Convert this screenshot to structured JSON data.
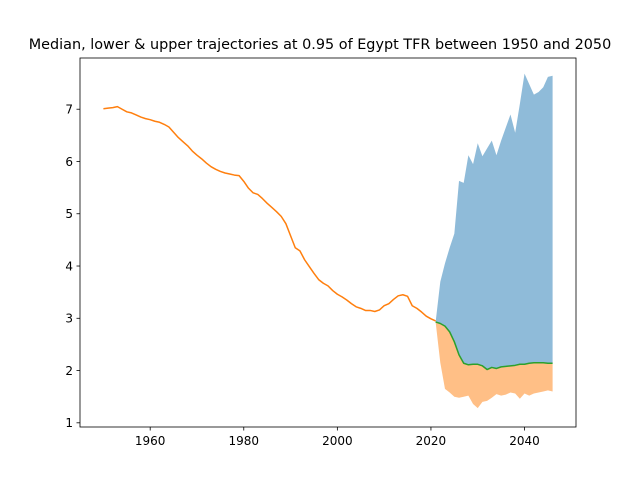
{
  "chart_data": {
    "type": "area",
    "title": "Median, lower & upper trajectories at 0.95 of Egypt TFR between 1950 and 2050",
    "xlabel": "",
    "ylabel": "",
    "xlim": [
      1945,
      2051
    ],
    "ylim": [
      0.92,
      7.98
    ],
    "xticks": [
      1960,
      1980,
      2000,
      2020,
      2040
    ],
    "yticks": [
      1,
      2,
      3,
      4,
      5,
      6,
      7
    ],
    "grid": false,
    "colors": {
      "historical": "#ff7f0e",
      "median": "#2ca02c",
      "upper_fill": "#1f77b4",
      "lower_fill": "#ff7f0e"
    },
    "historical": {
      "x": [
        1950,
        1951,
        1952,
        1953,
        1954,
        1955,
        1956,
        1957,
        1958,
        1959,
        1960,
        1961,
        1962,
        1963,
        1964,
        1965,
        1966,
        1967,
        1968,
        1969,
        1970,
        1971,
        1972,
        1973,
        1974,
        1975,
        1976,
        1977,
        1978,
        1979,
        1980,
        1981,
        1982,
        1983,
        1984,
        1985,
        1986,
        1987,
        1988,
        1989,
        1990,
        1991,
        1992,
        1993,
        1994,
        1995,
        1996,
        1997,
        1998,
        1999,
        2000,
        2001,
        2002,
        2003,
        2004,
        2005,
        2006,
        2007,
        2008,
        2009,
        2010,
        2011,
        2012,
        2013,
        2014,
        2015,
        2016,
        2017,
        2018,
        2019,
        2020,
        2021
      ],
      "y": [
        7.01,
        7.02,
        7.03,
        7.05,
        7.0,
        6.95,
        6.93,
        6.89,
        6.85,
        6.82,
        6.8,
        6.77,
        6.75,
        6.71,
        6.66,
        6.56,
        6.46,
        6.38,
        6.3,
        6.2,
        6.12,
        6.05,
        5.97,
        5.9,
        5.85,
        5.81,
        5.78,
        5.76,
        5.74,
        5.73,
        5.62,
        5.49,
        5.4,
        5.37,
        5.29,
        5.2,
        5.12,
        5.04,
        4.95,
        4.81,
        4.58,
        4.35,
        4.29,
        4.12,
        3.99,
        3.86,
        3.74,
        3.67,
        3.62,
        3.53,
        3.46,
        3.41,
        3.35,
        3.28,
        3.22,
        3.19,
        3.15,
        3.15,
        3.13,
        3.16,
        3.24,
        3.28,
        3.36,
        3.43,
        3.45,
        3.42,
        3.24,
        3.19,
        3.12,
        3.04,
        2.99,
        2.95
      ]
    },
    "median": {
      "x": [
        2021,
        2022,
        2023,
        2024,
        2025,
        2026,
        2027,
        2028,
        2029,
        2030,
        2031,
        2032,
        2033,
        2034,
        2035,
        2036,
        2037,
        2038,
        2039,
        2040,
        2041,
        2042,
        2043,
        2044,
        2045,
        2046
      ],
      "y": [
        2.93,
        2.9,
        2.85,
        2.74,
        2.55,
        2.3,
        2.14,
        2.11,
        2.12,
        2.12,
        2.09,
        2.02,
        2.06,
        2.04,
        2.07,
        2.08,
        2.09,
        2.1,
        2.12,
        2.12,
        2.14,
        2.15,
        2.15,
        2.15,
        2.14,
        2.14
      ]
    },
    "upper": {
      "x": [
        2021,
        2022,
        2023,
        2024,
        2025,
        2026,
        2027,
        2028,
        2029,
        2030,
        2031,
        2032,
        2033,
        2034,
        2035,
        2036,
        2037,
        2038,
        2039,
        2040,
        2041,
        2042,
        2043,
        2044,
        2045,
        2046
      ],
      "y": [
        2.93,
        3.7,
        4.05,
        4.35,
        4.62,
        5.63,
        5.59,
        6.12,
        5.95,
        6.35,
        6.1,
        6.25,
        6.4,
        6.12,
        6.4,
        6.65,
        6.9,
        6.55,
        7.1,
        7.68,
        7.48,
        7.28,
        7.33,
        7.42,
        7.62,
        7.64
      ]
    },
    "lower": {
      "x": [
        2021,
        2022,
        2023,
        2024,
        2025,
        2026,
        2027,
        2028,
        2029,
        2030,
        2031,
        2032,
        2033,
        2034,
        2035,
        2036,
        2037,
        2038,
        2039,
        2040,
        2041,
        2042,
        2043,
        2044,
        2045,
        2046
      ],
      "y": [
        2.93,
        2.15,
        1.65,
        1.58,
        1.5,
        1.48,
        1.5,
        1.52,
        1.36,
        1.28,
        1.4,
        1.42,
        1.48,
        1.55,
        1.52,
        1.54,
        1.58,
        1.56,
        1.46,
        1.56,
        1.52,
        1.56,
        1.58,
        1.6,
        1.62,
        1.6
      ]
    }
  }
}
